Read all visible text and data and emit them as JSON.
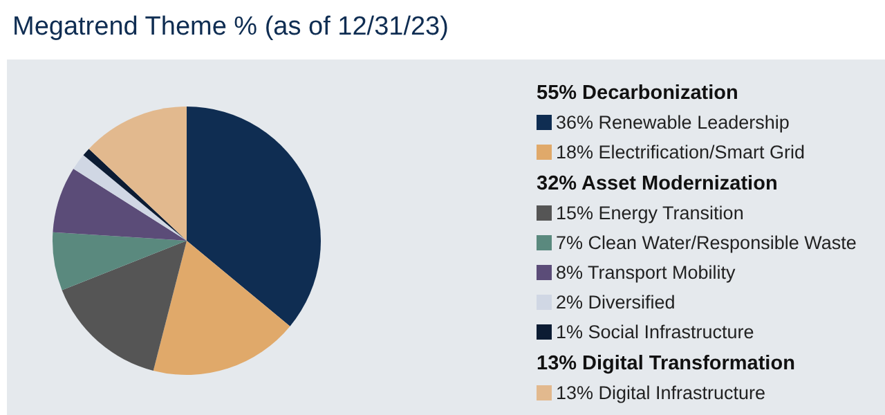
{
  "chart_data": {
    "type": "pie",
    "title": "Megatrend Theme % (as of 12/31/23)",
    "categories": [
      "36% Renewable Leadership",
      "18% Electrification/Smart Grid",
      "15% Energy Transition",
      "7% Clean Water/Responsible Waste",
      "8% Transport Mobility",
      "2% Diversified",
      "1% Social Infrastructure",
      "13% Digital Infrastructure"
    ],
    "values": [
      36,
      18,
      15,
      7,
      8,
      2,
      1,
      13
    ],
    "colors": [
      "#0f2d52",
      "#e0a96a",
      "#555555",
      "#5a897e",
      "#5b4c78",
      "#d0d7e4",
      "#0c1c33",
      "#e2b98e"
    ],
    "annotations": [
      {
        "text": "55% Decarbonization",
        "x": "36% Renewable Leadership"
      },
      {
        "text": "32% Asset Modernization",
        "x": "15% Energy Transition"
      },
      {
        "text": "13% Digital Transformation",
        "x": "13% Digital Infrastructure"
      }
    ],
    "legend": "right"
  }
}
